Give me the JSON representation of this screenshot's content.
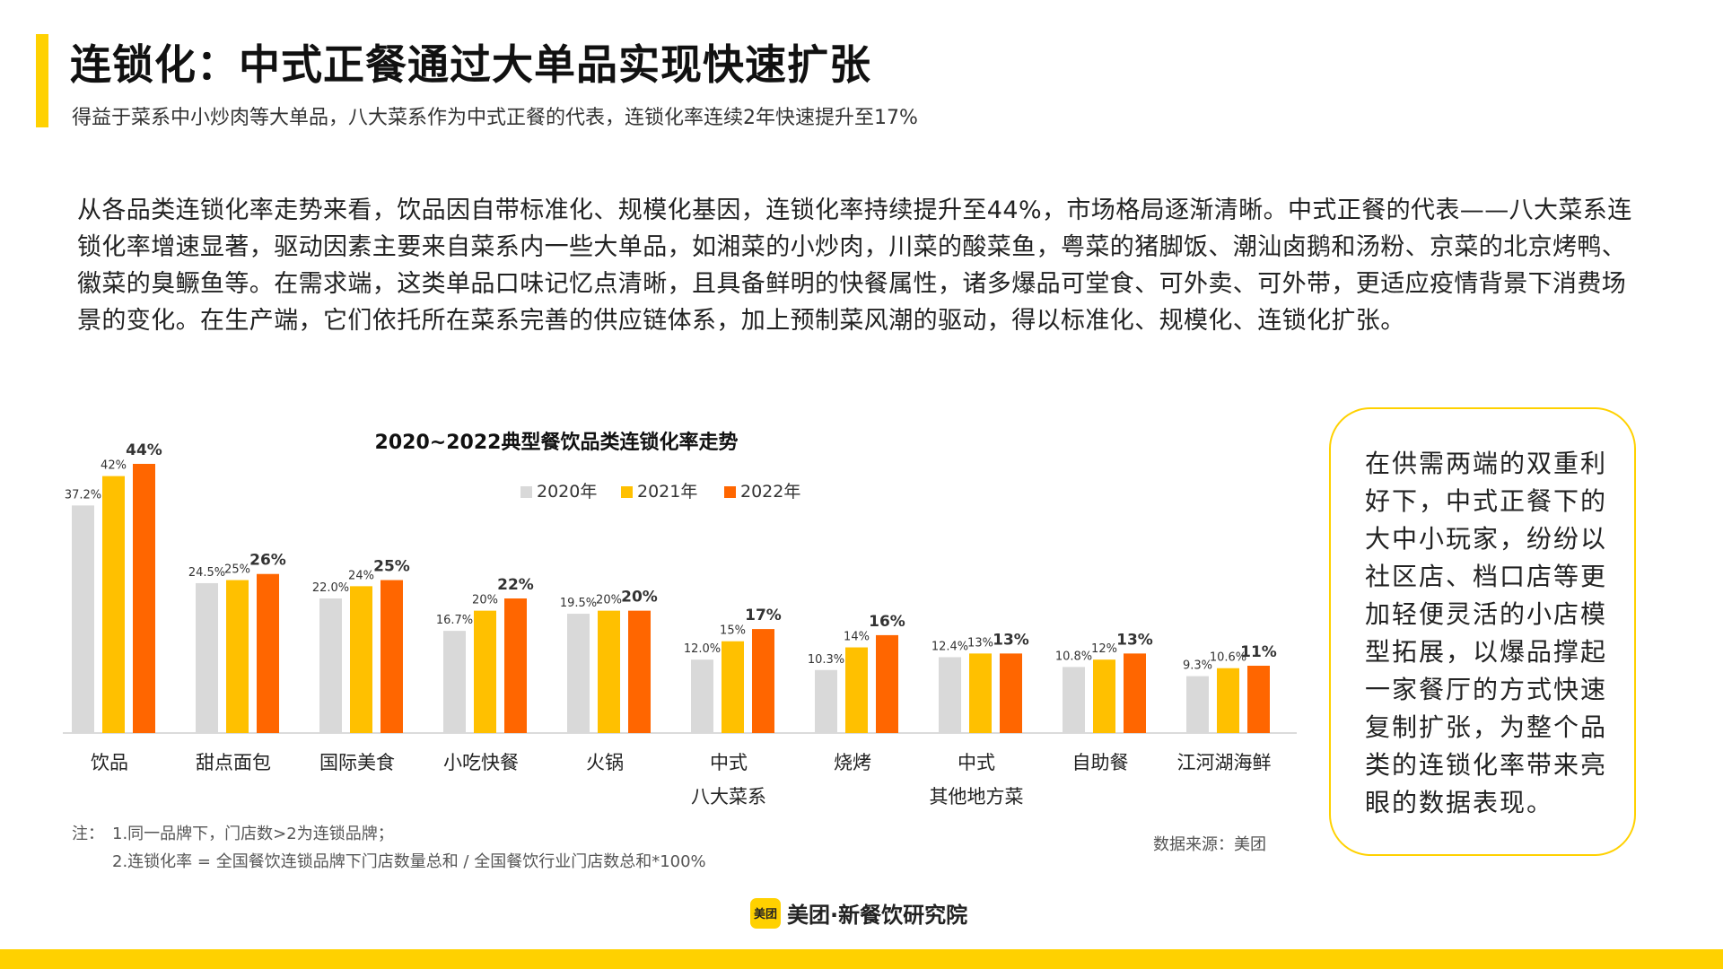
{
  "header": {
    "title": "连锁化：中式正餐通过大单品实现快速扩张",
    "subtitle": "得益于菜系中小炒肉等大单品，八大菜系作为中式正餐的代表，连锁化率连续2年快速提升至17%"
  },
  "body_text": "从各品类连锁化率走势来看，饮品因自带标准化、规模化基因，连锁化率持续提升至44%，市场格局逐渐清晰。中式正餐的代表——八大菜系连锁化率增速显著，驱动因素主要来自菜系内一些大单品，如湘菜的小炒肉，川菜的酸菜鱼，粤菜的猪脚饭、潮汕卤鹅和汤粉、京菜的北京烤鸭、徽菜的臭鳜鱼等。在需求端，这类单品口味记忆点清晰，且具备鲜明的快餐属性，诸多爆品可堂食、可外卖、可外带，更适应疫情背景下消费场景的变化。在生产端，它们依托所在菜系完善的供应链体系，加上预制菜风潮的驱动，得以标准化、规模化、连锁化扩张。",
  "callout": "在供需两端的双重利好下，中式正餐下的大中小玩家，纷纷以社区店、档口店等更加轻便灵活的小店模型拓展，以爆品撑起一家餐厅的方式快速复制扩张，为整个品类的连锁化率带来亮眼的数据表现。",
  "notes": {
    "label": "注：",
    "line1": "1.同一品牌下，门店数>2为连锁品牌；",
    "line2": "2.连锁化率 = 全国餐饮连锁品牌下门店数量总和 / 全国餐饮行业门店数总和*100%"
  },
  "source": "数据来源：美团",
  "brand": {
    "logo_text": "美团",
    "name": "美团·新餐饮研究院",
    "accent_color": "#FFD100"
  },
  "chart_data": {
    "type": "bar",
    "title": "2020~2022典型餐饮品类连锁化率走势",
    "categories": [
      [
        "饮品"
      ],
      [
        "甜点面包"
      ],
      [
        "国际美食"
      ],
      [
        "小吃快餐"
      ],
      [
        "火锅"
      ],
      [
        "中式",
        "八大菜系"
      ],
      [
        "烧烤"
      ],
      [
        "中式",
        "其他地方菜"
      ],
      [
        "自助餐"
      ],
      [
        "江河湖海鲜"
      ]
    ],
    "series": [
      {
        "name": "2020年",
        "color": "#D9D9D9",
        "values": [
          37.2,
          24.5,
          22.0,
          16.7,
          19.5,
          12.0,
          10.3,
          12.4,
          10.8,
          9.3
        ],
        "labels": [
          "37.2%",
          "24.5%",
          "22.0%",
          "16.7%",
          "19.5%",
          "12.0%",
          "10.3%",
          "12.4%",
          "10.8%",
          "9.3%"
        ]
      },
      {
        "name": "2021年",
        "color": "#FFC000",
        "values": [
          42,
          25,
          24,
          20,
          20,
          15,
          14,
          13,
          12,
          10.6
        ],
        "labels": [
          "42%",
          "25%",
          "24%",
          "20%",
          "20%",
          "15%",
          "14%",
          "13%",
          "12%",
          "10.6%"
        ]
      },
      {
        "name": "2022年",
        "color": "#FF6600",
        "values": [
          44,
          26,
          25,
          22,
          20,
          17,
          16,
          13,
          13,
          11
        ],
        "labels": [
          "44%",
          "26%",
          "25%",
          "22%",
          "20%",
          "17%",
          "16%",
          "13%",
          "13%",
          "11%"
        ]
      }
    ],
    "ylim": [
      0,
      44
    ],
    "legend_position": "top-center",
    "grid": false
  }
}
